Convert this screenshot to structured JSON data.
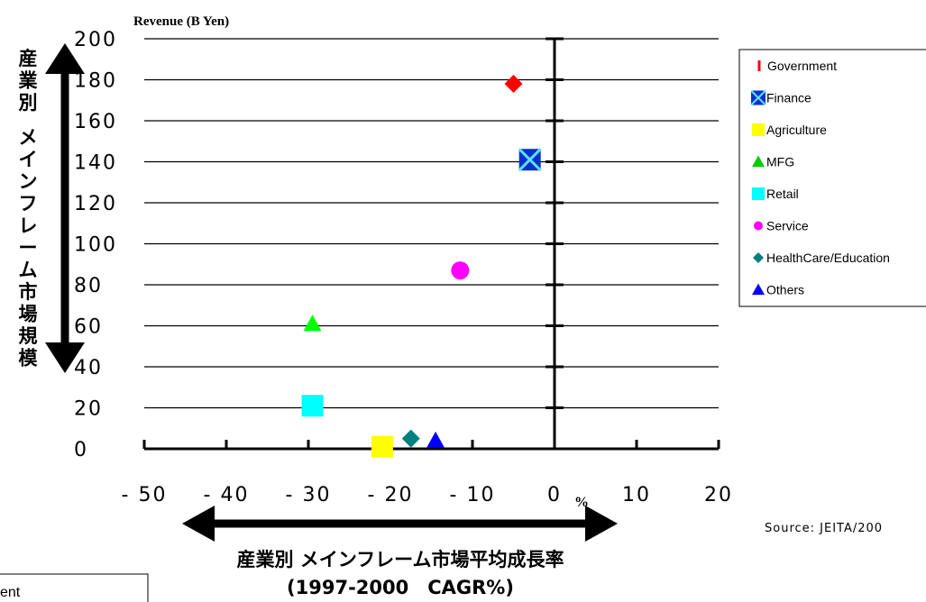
{
  "chart_data": {
    "type": "scatter",
    "title": "Revenue (B Yen)",
    "ylabel": "産業別 メインフレーム市場規模",
    "xlabel_line1": "産業別 メインフレーム市場平均成長率",
    "xlabel_line2": "(1997-2000　CAGR%)",
    "x_unit": "%",
    "source": "Source: JEITA/200",
    "clipped_box_text": "ent",
    "xlim": [
      -50,
      20
    ],
    "ylim": [
      0,
      200
    ],
    "x_ticks": [
      -50,
      -40,
      -30,
      -20,
      -10,
      0,
      10,
      20
    ],
    "y_ticks": [
      0,
      20,
      40,
      60,
      80,
      100,
      120,
      140,
      160,
      180,
      200
    ],
    "grid": "horizontal",
    "legend_position": "right",
    "series": [
      {
        "name": "Government",
        "marker": "diamond",
        "color": "#ff0000",
        "x": -5,
        "y": 178
      },
      {
        "name": "Finance",
        "marker": "square-x",
        "color": "#0033cc",
        "x": -3,
        "y": 141
      },
      {
        "name": "Agriculture",
        "marker": "square",
        "color": "#ffff00",
        "x": -21,
        "y": 1
      },
      {
        "name": "MFG",
        "marker": "triangle",
        "color": "#00ff00",
        "x": -29.5,
        "y": 61
      },
      {
        "name": "Retail",
        "marker": "square",
        "color": "#00ffff",
        "x": -29.5,
        "y": 21
      },
      {
        "name": "Service",
        "marker": "circle",
        "color": "#ff00ff",
        "x": -11.5,
        "y": 87
      },
      {
        "name": "HealthCare/Education",
        "marker": "diamond",
        "color": "#008080",
        "x": -17.5,
        "y": 5
      },
      {
        "name": "Others",
        "marker": "triangle",
        "color": "#0000ff",
        "x": -14.5,
        "y": 4
      }
    ],
    "legend_markers": [
      {
        "marker": "bar",
        "color": "#ff0000"
      },
      {
        "marker": "square-x",
        "color": "#0033cc"
      },
      {
        "marker": "square",
        "color": "#ffff00"
      },
      {
        "marker": "triangle",
        "color": "#00cc00"
      },
      {
        "marker": "square",
        "color": "#00ffff"
      },
      {
        "marker": "circle",
        "color": "#ff00ff"
      },
      {
        "marker": "diamond",
        "color": "#008080"
      },
      {
        "marker": "triangle",
        "color": "#0000ff"
      }
    ]
  }
}
